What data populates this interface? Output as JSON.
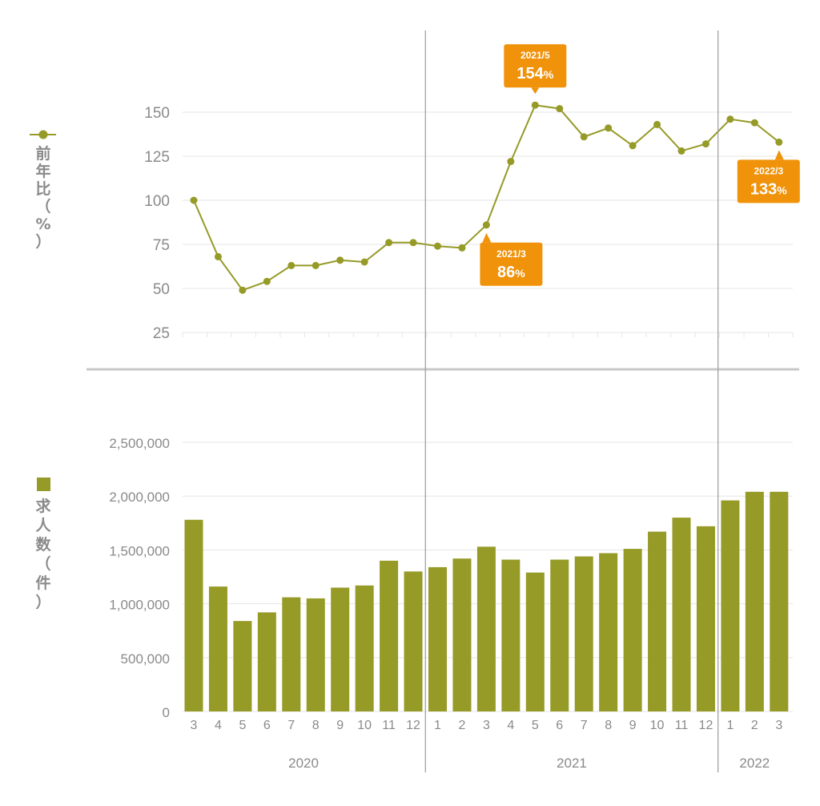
{
  "colors": {
    "series": "#969a27",
    "callout": "#f0920a",
    "grid": "#e6e6e6",
    "axis_text": "#8a8a8a",
    "divider": "#c8c8c8",
    "year_line": "#9a9a9a"
  },
  "labels": {
    "ratio_ylabel": [
      "前",
      "年",
      "比",
      "（",
      "%",
      "）"
    ],
    "count_ylabel": [
      "求",
      "人",
      "数",
      "（",
      "件",
      "）"
    ]
  },
  "chart_data": [
    {
      "type": "line",
      "ylabel": "前年比（%）",
      "yticks": [
        25,
        50,
        75,
        100,
        125,
        150
      ],
      "ylim": [
        25,
        150
      ],
      "grid": true,
      "categories": [
        "3",
        "4",
        "5",
        "6",
        "7",
        "8",
        "9",
        "10",
        "11",
        "12",
        "1",
        "2",
        "3",
        "4",
        "5",
        "6",
        "7",
        "8",
        "9",
        "10",
        "11",
        "12",
        "1",
        "2",
        "3"
      ],
      "series": [
        {
          "name": "前年比",
          "values": [
            100,
            68,
            49,
            54,
            63,
            63,
            66,
            65,
            76,
            76,
            74,
            73,
            86,
            122,
            154,
            152,
            136,
            141,
            131,
            143,
            128,
            132,
            146,
            144,
            133
          ]
        }
      ],
      "annotations": [
        {
          "index": 12,
          "date": "2021/3",
          "value": "86",
          "unit": "%",
          "position": "below"
        },
        {
          "index": 14,
          "date": "2021/5",
          "value": "154",
          "unit": "%",
          "position": "above"
        },
        {
          "index": 24,
          "date": "2022/3",
          "value": "133",
          "unit": "%",
          "position": "below"
        }
      ]
    },
    {
      "type": "bar",
      "ylabel": "求人数（件）",
      "yticks": [
        0,
        500000,
        1000000,
        1500000,
        2000000,
        2500000
      ],
      "ytick_labels": [
        "0",
        "500,000",
        "1,000,000",
        "1,500,000",
        "2,000,000",
        "2,500,000"
      ],
      "ylim": [
        0,
        2500000
      ],
      "grid": true,
      "categories": [
        "3",
        "4",
        "5",
        "6",
        "7",
        "8",
        "9",
        "10",
        "11",
        "12",
        "1",
        "2",
        "3",
        "4",
        "5",
        "6",
        "7",
        "8",
        "9",
        "10",
        "11",
        "12",
        "1",
        "2",
        "3"
      ],
      "years": [
        {
          "label": "2020",
          "start": 0,
          "end": 9
        },
        {
          "label": "2021",
          "start": 10,
          "end": 21
        },
        {
          "label": "2022",
          "start": 22,
          "end": 24
        }
      ],
      "series": [
        {
          "name": "求人数",
          "values": [
            1780000,
            1160000,
            840000,
            920000,
            1060000,
            1050000,
            1150000,
            1170000,
            1400000,
            1300000,
            1340000,
            1420000,
            1530000,
            1410000,
            1290000,
            1410000,
            1440000,
            1470000,
            1510000,
            1670000,
            1800000,
            1720000,
            1960000,
            2040000,
            2040000
          ]
        }
      ]
    }
  ]
}
